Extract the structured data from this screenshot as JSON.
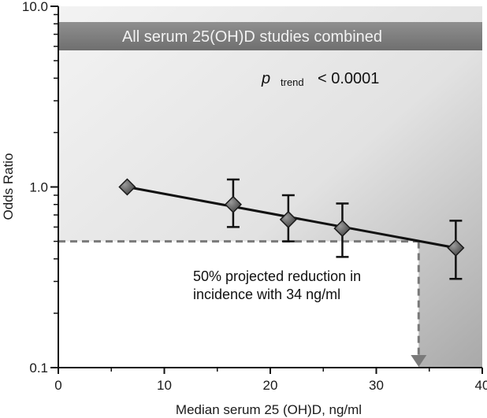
{
  "chart_data": {
    "type": "line",
    "xlabel": "Median serum 25 (OH)D, ng/ml",
    "ylabel": "Odds Ratio",
    "xlim": [
      0,
      40
    ],
    "ylim": [
      0.1,
      10.0
    ],
    "yscale": "log",
    "x_ticks": [
      0,
      10,
      20,
      30,
      40
    ],
    "x_tick_labels": [
      "0",
      "10",
      "20",
      "30",
      "40"
    ],
    "y_ticks": [
      0.1,
      1.0,
      10.0
    ],
    "y_tick_labels": [
      "0.1",
      "1.0",
      "10.0"
    ],
    "grid": false,
    "legend": "none",
    "banner": "All serum 25(OH)D studies combined",
    "p_trend": {
      "symbol": "p",
      "subscript": "trend",
      "value": "< 0.0001"
    },
    "annotation": [
      "50% projected reduction in",
      "incidence with 34 ng/ml"
    ],
    "projection": {
      "x": 34,
      "y": 0.5
    },
    "series": [
      {
        "x": [
          6.5,
          16.5,
          21.7,
          26.8,
          37.5
        ],
        "y": [
          1.0,
          0.8,
          0.66,
          0.59,
          0.46
        ],
        "err_low": [
          null,
          0.6,
          0.5,
          0.41,
          0.31
        ],
        "err_high": [
          null,
          1.1,
          0.9,
          0.81,
          0.65
        ],
        "fit": {
          "x": [
            6.5,
            37.5
          ],
          "y": [
            1.0,
            0.46
          ]
        }
      }
    ]
  }
}
